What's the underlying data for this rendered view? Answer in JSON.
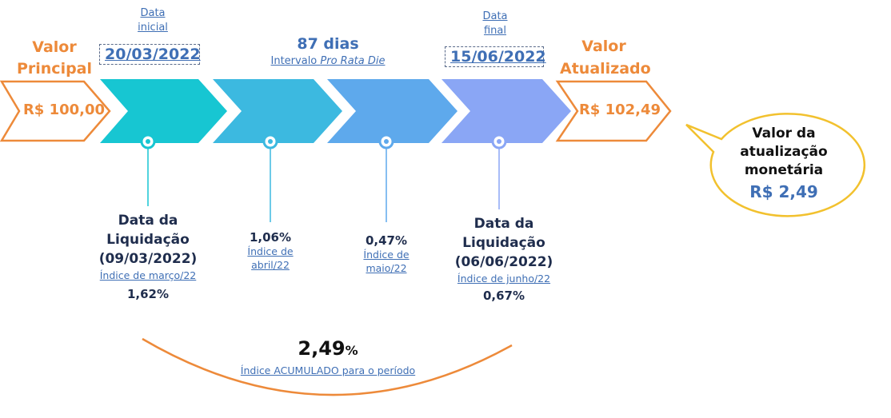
{
  "principal": {
    "label_line1": "Valor",
    "label_line2": "Principal",
    "value": "R$ 100,00"
  },
  "updated": {
    "label_line1": "Valor",
    "label_line2": "Atualizado",
    "value": "R$ 102,49"
  },
  "start_date": {
    "caption_line1": "Data",
    "caption_line2": "inicial",
    "date": "20/03/2022"
  },
  "end_date": {
    "caption_line1": "Data",
    "caption_line2": "final",
    "date": "15/06/2022"
  },
  "interval": {
    "days": "87 dias",
    "caption_prefix": "Intervalo ",
    "caption_italic": "Pro Rata Die"
  },
  "milestones": [
    {
      "title_line1": "Data da",
      "title_line2": "Liquidação",
      "title_line3": "(09/03/2022)",
      "index_label": "Índice de março/22",
      "index_value": "1,62%"
    },
    {
      "value": "1,06%",
      "index_label_line1": "Índice de",
      "index_label_line2": "abril/22"
    },
    {
      "value": "0,47%",
      "index_label_line1": "Índice de",
      "index_label_line2": "maio/22"
    },
    {
      "title_line1": "Data da",
      "title_line2": "Liquidação",
      "title_line3": "(06/06/2022)",
      "index_label": "Índice de junho/22",
      "index_value": "0,67%"
    }
  ],
  "accumulated": {
    "value": "2,49",
    "unit": "%",
    "label": "Índice ACUMULADO para o período"
  },
  "callout": {
    "line1": "Valor da",
    "line2": "atualização",
    "line3": "monetária",
    "value": "R$ 2,49"
  },
  "colors": {
    "orange": "#ED8A3A",
    "chevron1": "#17C6D2",
    "chevron2": "#3CB9E0",
    "chevron3": "#5EA9EC",
    "chevron4": "#8AA6F5",
    "callout_border": "#F2C12E",
    "dark_text": "#1F2D4D",
    "link_blue": "#3F6FB5"
  }
}
